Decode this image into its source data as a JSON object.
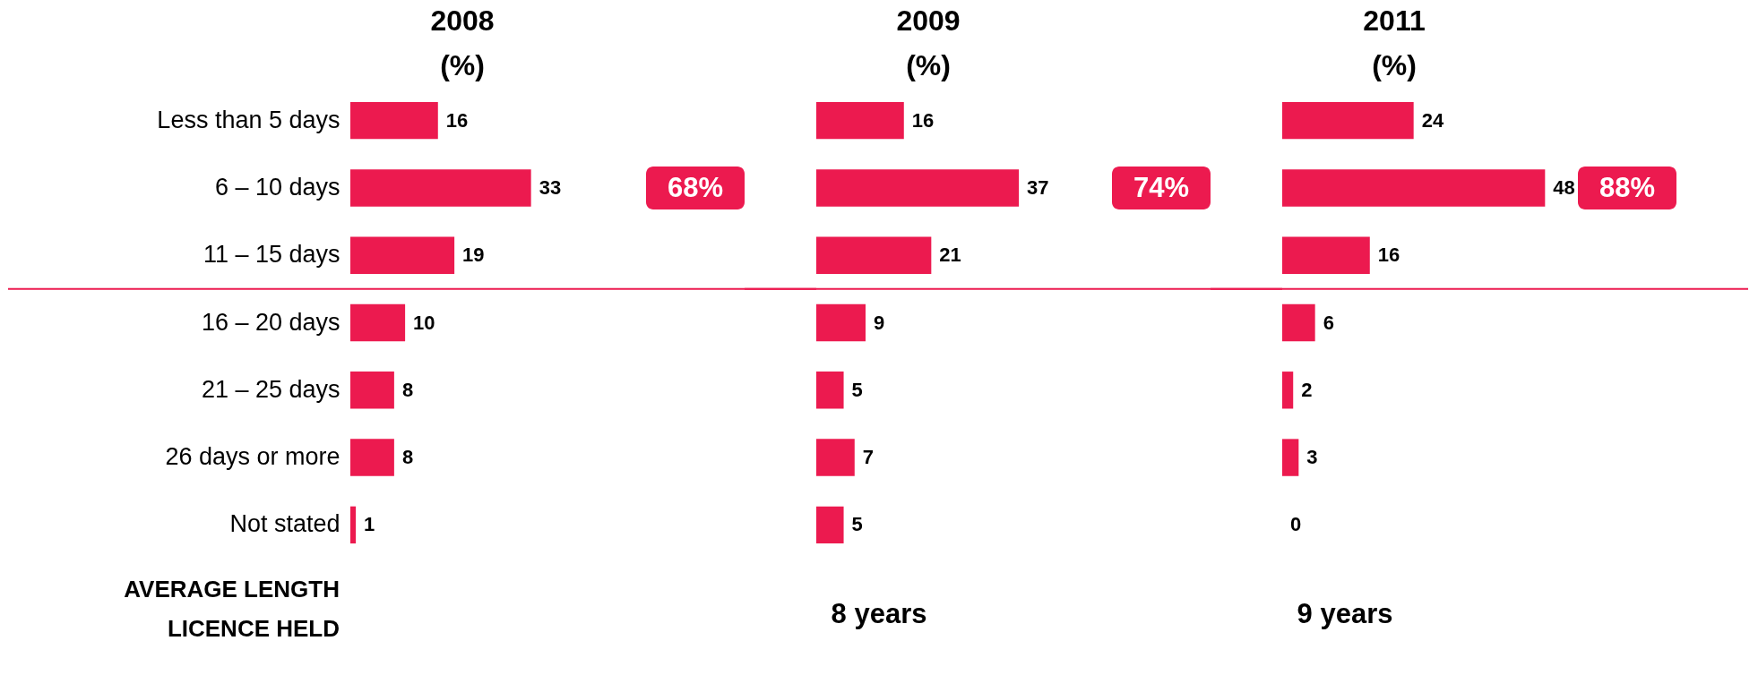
{
  "chart_data": [
    {
      "type": "bar",
      "orientation": "horizontal",
      "title": "2008\n(%)",
      "categories": [
        "Less than 5 days",
        "6 – 10 days",
        "11 – 15 days",
        "16 – 20 days",
        "21 – 25 days",
        "26 days or more",
        "Not stated"
      ],
      "values": [
        16,
        33,
        19,
        10,
        8,
        8,
        1
      ],
      "color": "#ec1a4f",
      "data_labels": true,
      "tick_labels": "y",
      "ref_lines": [
        {
          "axis": "y",
          "value": "11 – 15 days",
          "color": "#ec1a4f"
        }
      ],
      "annotations": [
        "68%",
        "AVERAGE LENGTH\nLICENCE HELD"
      ]
    },
    {
      "type": "bar",
      "orientation": "horizontal",
      "title": "2009\n(%)",
      "categories": [
        "Less than 5 days",
        "6 – 10 days",
        "11 – 15 days",
        "16 – 20 days",
        "21 – 25 days",
        "26 days or more",
        "Not stated"
      ],
      "values": [
        16,
        37,
        21,
        9,
        5,
        7,
        5
      ],
      "color": "#ec1a4f",
      "data_labels": true,
      "tick_labels": false,
      "ref_lines": [
        {
          "axis": "y",
          "value": "11 – 15 days",
          "color": "#ec1a4f"
        }
      ],
      "annotations": [
        "74%",
        "8 years"
      ]
    },
    {
      "type": "bar",
      "orientation": "horizontal",
      "title": "2011\n(%)",
      "categories": [
        "Less than 5 days",
        "6 – 10 days",
        "11 – 15 days",
        "16 – 20 days",
        "21 – 25 days",
        "26 days or more",
        "Not stated"
      ],
      "values": [
        24,
        48,
        16,
        6,
        2,
        3,
        0
      ],
      "color": "#ec1a4f",
      "data_labels": true,
      "tick_labels": false,
      "ref_lines": [
        {
          "axis": "y",
          "value": "11 – 15 days",
          "color": "#ec1a4f"
        }
      ],
      "annotations": [
        "88%",
        "9 years"
      ]
    }
  ]
}
